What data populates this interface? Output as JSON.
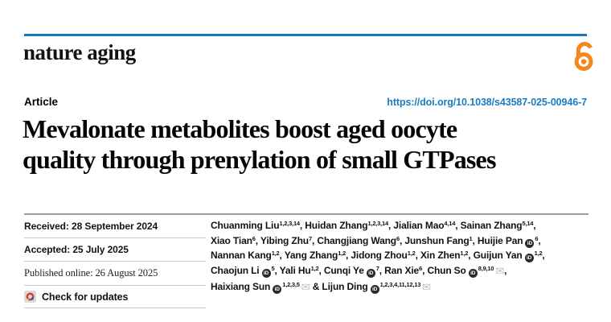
{
  "journal": {
    "name": "nature aging"
  },
  "article": {
    "type_label": "Article",
    "doi": "https://doi.org/10.1038/s43587-025-00946-7",
    "title_line1": "Mevalonate metabolites boost aged oocyte",
    "title_line2": "quality through prenylation of small GTPases"
  },
  "dates": {
    "received": "Received: 28 September 2024",
    "accepted": "Accepted: 25 July 2025",
    "published": "Published online: 26 August 2025",
    "check_updates": "Check for updates"
  },
  "icons": {
    "open_access": "open-lock",
    "orcid_label": "iD",
    "mail_glyph": "✉",
    "crossmark": "crossmark-circle"
  },
  "colors": {
    "brand_blue": "#1878be",
    "link_blue": "#1a7cc4",
    "open_access_orange": "#f6861f"
  },
  "authors": {
    "lines": [
      [
        {
          "name": "Chuanming Liu",
          "sup": "1,2,3,14",
          "sep": ", "
        },
        {
          "name": "Huidan Zhang",
          "sup": "1,2,3,14",
          "sep": ", "
        },
        {
          "name": "Jialian Mao",
          "sup": "4,14",
          "sep": ", "
        },
        {
          "name": "Sainan Zhang",
          "sup": "5,14",
          "sep": ","
        }
      ],
      [
        {
          "name": "Xiao Tian",
          "sup": "6",
          "sep": ", "
        },
        {
          "name": "Yibing Zhu",
          "sup": "7",
          "sep": ", "
        },
        {
          "name": "Changjiang Wang",
          "sup": "6",
          "sep": ", "
        },
        {
          "name": "Junshun Fang",
          "sup": "1",
          "sep": ", "
        },
        {
          "name": "Huijie Pan",
          "orcid": true,
          "sup": "6",
          "sep": ","
        }
      ],
      [
        {
          "name": "Nannan Kang",
          "sup": "1,2",
          "sep": ", "
        },
        {
          "name": "Yang Zhang",
          "sup": "1,2",
          "sep": ", "
        },
        {
          "name": "Jidong Zhou",
          "sup": "1,2",
          "sep": ", "
        },
        {
          "name": "Xin Zhen",
          "sup": "1,2",
          "sep": ", "
        },
        {
          "name": "Guijun Yan",
          "orcid": true,
          "sup": "1,2",
          "sep": ","
        }
      ],
      [
        {
          "name": "Chaojun Li",
          "orcid": true,
          "sup": "5",
          "sep": ", "
        },
        {
          "name": "Yali Hu",
          "sup": "1,2",
          "sep": ", "
        },
        {
          "name": "Cunqi Ye",
          "orcid": true,
          "sup": "7",
          "sep": ", "
        },
        {
          "name": "Ran Xie",
          "sup": "6",
          "sep": ", "
        },
        {
          "name": "Chun So",
          "orcid": true,
          "sup": "8,9,10",
          "mail": true,
          "sep": ","
        }
      ],
      [
        {
          "name": "Haixiang Sun",
          "orcid": true,
          "sup": "1,2,3,5",
          "mail": true,
          "sep": " & "
        },
        {
          "name": "Lijun Ding",
          "orcid": true,
          "sup": "1,2,3,4,11,12,13",
          "mail": true,
          "sep": ""
        }
      ]
    ]
  }
}
